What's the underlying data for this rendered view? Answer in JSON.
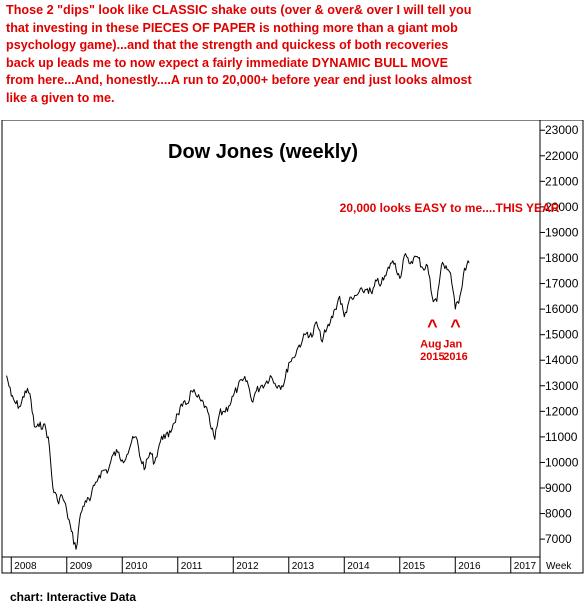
{
  "header": {
    "lines": [
      "Those 2 \"dips\" look like CLASSIC shake outs (over & over& over I will tell you",
      "that investing in these PIECES OF PAPER is nothing more than a giant mob",
      "psychology game)...and that the strength and quickess of both recoveries",
      "back up leads me to now expect a fairly immediate  DYNAMIC BULL MOVE",
      "from here...And, honestly....A run to 20,000+ before year end just looks almost",
      "like a given to me."
    ],
    "color": "#e00000"
  },
  "footer": {
    "credit": "chart: Interactive Data"
  },
  "chart_data": {
    "type": "line",
    "title": "Dow Jones (weekly)",
    "xlabel": "",
    "ylabel": "",
    "x_unit_label": "Week",
    "ylim": [
      6300,
      23400
    ],
    "y_ticks": [
      7000,
      8000,
      9000,
      10000,
      11000,
      12000,
      13000,
      14000,
      15000,
      16000,
      17000,
      18000,
      19000,
      20000,
      21000,
      22000,
      23000
    ],
    "x_tick_labels": [
      "2008",
      "2009",
      "2010",
      "2011",
      "2012",
      "2013",
      "2014",
      "2015",
      "2016",
      "2017",
      "2017"
    ],
    "line_color": "#000000",
    "grid": false,
    "series": [
      {
        "x": [
          "2007-12",
          "2008-01",
          "2008-02",
          "2008-03",
          "2008-04",
          "2008-05",
          "2008-06",
          "2008-07",
          "2008-08",
          "2008-09",
          "2008-10",
          "2008-11",
          "2008-12",
          "2009-01",
          "2009-02",
          "2009-03",
          "2009-04",
          "2009-05",
          "2009-06",
          "2009-07",
          "2009-08",
          "2009-09",
          "2009-10",
          "2009-11",
          "2009-12",
          "2010-01",
          "2010-02",
          "2010-03",
          "2010-04",
          "2010-05",
          "2010-06",
          "2010-07",
          "2010-08",
          "2010-09",
          "2010-10",
          "2010-11",
          "2010-12",
          "2011-01",
          "2011-02",
          "2011-03",
          "2011-04",
          "2011-05",
          "2011-06",
          "2011-07",
          "2011-08",
          "2011-09",
          "2011-10",
          "2011-11",
          "2011-12",
          "2012-01",
          "2012-02",
          "2012-03",
          "2012-04",
          "2012-05",
          "2012-06",
          "2012-07",
          "2012-08",
          "2012-09",
          "2012-10",
          "2012-11",
          "2012-12",
          "2013-01",
          "2013-02",
          "2013-03",
          "2013-04",
          "2013-05",
          "2013-06",
          "2013-07",
          "2013-08",
          "2013-09",
          "2013-10",
          "2013-11",
          "2013-12",
          "2014-01",
          "2014-02",
          "2014-03",
          "2014-04",
          "2014-05",
          "2014-06",
          "2014-07",
          "2014-08",
          "2014-09",
          "2014-10",
          "2014-11",
          "2014-12",
          "2015-01",
          "2015-02",
          "2015-03",
          "2015-04",
          "2015-05",
          "2015-06",
          "2015-07",
          "2015-08",
          "2015-09",
          "2015-10",
          "2015-11",
          "2015-12",
          "2016-01",
          "2016-02",
          "2016-03",
          "2016-04"
        ],
        "values": [
          13400,
          12600,
          12300,
          12200,
          12800,
          12700,
          11400,
          11400,
          11500,
          11000,
          9000,
          8500,
          8700,
          8100,
          7300,
          6600,
          8000,
          8500,
          8500,
          9100,
          9500,
          9700,
          9700,
          10300,
          10400,
          10100,
          10300,
          10800,
          11000,
          10100,
          9800,
          10400,
          10000,
          10700,
          11100,
          11000,
          11500,
          11900,
          12200,
          12300,
          12800,
          12600,
          12400,
          12200,
          11500,
          10900,
          11900,
          12000,
          12200,
          12600,
          12950,
          13200,
          13200,
          12400,
          12800,
          13000,
          13100,
          13400,
          13100,
          13000,
          13100,
          13900,
          14100,
          14500,
          14800,
          15100,
          14900,
          15500,
          14800,
          15100,
          15500,
          16000,
          16500,
          15700,
          16300,
          16400,
          16600,
          16700,
          16800,
          16600,
          17100,
          17000,
          17300,
          17800,
          17800,
          17200,
          18100,
          17800,
          18000,
          18000,
          17600,
          17700,
          16500,
          16300,
          17700,
          17700,
          17400,
          16000,
          16500,
          17600,
          17800
        ]
      }
    ],
    "annotations": [
      {
        "text": "20,000 looks EASY to me....THIS YEAR",
        "x": "2013-12",
        "y": 20000
      },
      {
        "text": "^",
        "x": "2015-08",
        "y": 15100
      },
      {
        "text": "Aug",
        "x": "2015-08",
        "y": 14500
      },
      {
        "text": "2015",
        "x": "2015-08",
        "y": 14000
      },
      {
        "text": "^",
        "x": "2016-01",
        "y": 15100
      },
      {
        "text": "Jan",
        "x": "2016-01",
        "y": 14500
      },
      {
        "text": "2016",
        "x": "2016-01",
        "y": 14000
      }
    ]
  }
}
